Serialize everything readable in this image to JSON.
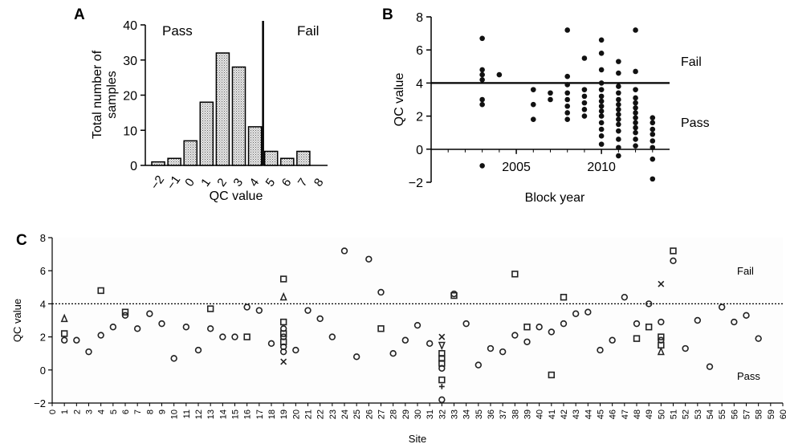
{
  "chart_data": [
    {
      "panel": "A",
      "type": "bar",
      "xlabel": "QC value",
      "ylabel": "Total number of samples",
      "ylim": [
        0,
        40
      ],
      "y_ticks": [
        "0",
        "10",
        "20",
        "30",
        "40"
      ],
      "categories": [
        "−2",
        "−1",
        "0",
        "1",
        "2",
        "3",
        "4",
        "5",
        "6",
        "7",
        "8"
      ],
      "values": [
        1,
        2,
        7,
        18,
        32,
        28,
        11,
        4,
        2,
        4,
        0
      ],
      "threshold": 4.5,
      "annotations": [
        "Pass",
        "Fail"
      ],
      "bar_fill": "stippled grey"
    },
    {
      "panel": "B",
      "type": "scatter",
      "xlabel": "Block year",
      "ylabel": "QC value",
      "xlim": [
        2000,
        2014
      ],
      "ylim": [
        -2,
        8
      ],
      "x_ticks": [
        "2005",
        "2010"
      ],
      "y_ticks": [
        "−2",
        "0",
        "2",
        "4",
        "6",
        "8"
      ],
      "threshold": 4,
      "annotations": [
        "Fail",
        "Pass"
      ],
      "points": [
        {
          "x": 2003,
          "y": 6.7
        },
        {
          "x": 2003,
          "y": 4.8
        },
        {
          "x": 2003,
          "y": 4.5
        },
        {
          "x": 2003,
          "y": 4.2
        },
        {
          "x": 2003,
          "y": 3.0
        },
        {
          "x": 2003,
          "y": 2.7
        },
        {
          "x": 2003,
          "y": -1.0
        },
        {
          "x": 2004,
          "y": 4.5
        },
        {
          "x": 2006,
          "y": 3.6
        },
        {
          "x": 2006,
          "y": 2.7
        },
        {
          "x": 2006,
          "y": 1.8
        },
        {
          "x": 2007,
          "y": 3.4
        },
        {
          "x": 2007,
          "y": 3.0
        },
        {
          "x": 2008,
          "y": 7.2
        },
        {
          "x": 2008,
          "y": 4.4
        },
        {
          "x": 2008,
          "y": 3.9
        },
        {
          "x": 2008,
          "y": 3.4
        },
        {
          "x": 2008,
          "y": 3.0
        },
        {
          "x": 2008,
          "y": 2.6
        },
        {
          "x": 2008,
          "y": 2.2
        },
        {
          "x": 2008,
          "y": 1.8
        },
        {
          "x": 2009,
          "y": 5.5
        },
        {
          "x": 2009,
          "y": 3.6
        },
        {
          "x": 2009,
          "y": 3.2
        },
        {
          "x": 2009,
          "y": 2.8
        },
        {
          "x": 2009,
          "y": 2.4
        },
        {
          "x": 2009,
          "y": 2.0
        },
        {
          "x": 2010,
          "y": 6.6
        },
        {
          "x": 2010,
          "y": 5.8
        },
        {
          "x": 2010,
          "y": 4.8
        },
        {
          "x": 2010,
          "y": 4.0
        },
        {
          "x": 2010,
          "y": 3.6
        },
        {
          "x": 2010,
          "y": 3.2
        },
        {
          "x": 2010,
          "y": 2.9
        },
        {
          "x": 2010,
          "y": 2.6
        },
        {
          "x": 2010,
          "y": 2.3
        },
        {
          "x": 2010,
          "y": 2.0
        },
        {
          "x": 2010,
          "y": 1.6
        },
        {
          "x": 2010,
          "y": 1.2
        },
        {
          "x": 2010,
          "y": 0.8
        },
        {
          "x": 2010,
          "y": 0.3
        },
        {
          "x": 2011,
          "y": 5.3
        },
        {
          "x": 2011,
          "y": 4.6
        },
        {
          "x": 2011,
          "y": 3.8
        },
        {
          "x": 2011,
          "y": 3.4
        },
        {
          "x": 2011,
          "y": 3.0
        },
        {
          "x": 2011,
          "y": 2.7
        },
        {
          "x": 2011,
          "y": 2.4
        },
        {
          "x": 2011,
          "y": 2.1
        },
        {
          "x": 2011,
          "y": 1.8
        },
        {
          "x": 2011,
          "y": 1.5
        },
        {
          "x": 2011,
          "y": 1.1
        },
        {
          "x": 2011,
          "y": 0.6
        },
        {
          "x": 2011,
          "y": 0.1
        },
        {
          "x": 2011,
          "y": -0.4
        },
        {
          "x": 2012,
          "y": 7.2
        },
        {
          "x": 2012,
          "y": 4.7
        },
        {
          "x": 2012,
          "y": 3.6
        },
        {
          "x": 2012,
          "y": 3.1
        },
        {
          "x": 2012,
          "y": 2.8
        },
        {
          "x": 2012,
          "y": 2.5
        },
        {
          "x": 2012,
          "y": 2.2
        },
        {
          "x": 2012,
          "y": 1.9
        },
        {
          "x": 2012,
          "y": 1.6
        },
        {
          "x": 2012,
          "y": 1.3
        },
        {
          "x": 2012,
          "y": 1.0
        },
        {
          "x": 2012,
          "y": 0.6
        },
        {
          "x": 2012,
          "y": 0.2
        },
        {
          "x": 2013,
          "y": 1.9
        },
        {
          "x": 2013,
          "y": 1.6
        },
        {
          "x": 2013,
          "y": 1.2
        },
        {
          "x": 2013,
          "y": 0.9
        },
        {
          "x": 2013,
          "y": 0.5
        },
        {
          "x": 2013,
          "y": 0.1
        },
        {
          "x": 2013,
          "y": -0.6
        },
        {
          "x": 2013,
          "y": -1.8
        }
      ]
    },
    {
      "panel": "C",
      "type": "scatter",
      "xlabel": "Site",
      "ylabel": "QC value",
      "xlim": [
        0,
        60
      ],
      "ylim": [
        -2,
        8
      ],
      "y_ticks": [
        "−2",
        "0",
        "2",
        "4",
        "6",
        "8"
      ],
      "threshold": 4,
      "annotations": [
        "Fail",
        "Pass"
      ],
      "points": [
        {
          "x": 1,
          "y": 3.1,
          "m": "triangle"
        },
        {
          "x": 1,
          "y": 2.2,
          "m": "square"
        },
        {
          "x": 1,
          "y": 1.8,
          "m": "circle"
        },
        {
          "x": 2,
          "y": 1.8,
          "m": "circle"
        },
        {
          "x": 3,
          "y": 1.1,
          "m": "circle"
        },
        {
          "x": 4,
          "y": 4.8,
          "m": "square"
        },
        {
          "x": 4,
          "y": 2.1,
          "m": "circle"
        },
        {
          "x": 5,
          "y": 2.6,
          "m": "circle"
        },
        {
          "x": 6,
          "y": 3.5,
          "m": "square"
        },
        {
          "x": 6,
          "y": 3.3,
          "m": "circle"
        },
        {
          "x": 7,
          "y": 2.5,
          "m": "circle"
        },
        {
          "x": 8,
          "y": 3.4,
          "m": "circle"
        },
        {
          "x": 9,
          "y": 2.8,
          "m": "circle"
        },
        {
          "x": 10,
          "y": 0.7,
          "m": "circle"
        },
        {
          "x": 11,
          "y": 2.6,
          "m": "circle"
        },
        {
          "x": 12,
          "y": 1.2,
          "m": "circle"
        },
        {
          "x": 13,
          "y": 3.7,
          "m": "square"
        },
        {
          "x": 13,
          "y": 2.5,
          "m": "circle"
        },
        {
          "x": 14,
          "y": 2.0,
          "m": "circle"
        },
        {
          "x": 15,
          "y": 2.0,
          "m": "circle"
        },
        {
          "x": 16,
          "y": 3.8,
          "m": "circle"
        },
        {
          "x": 16,
          "y": 2.0,
          "m": "square"
        },
        {
          "x": 17,
          "y": 3.6,
          "m": "circle"
        },
        {
          "x": 18,
          "y": 1.6,
          "m": "circle"
        },
        {
          "x": 19,
          "y": 5.5,
          "m": "square"
        },
        {
          "x": 19,
          "y": 4.4,
          "m": "triangle"
        },
        {
          "x": 19,
          "y": 2.9,
          "m": "square"
        },
        {
          "x": 19,
          "y": 2.5,
          "m": "circle"
        },
        {
          "x": 19,
          "y": 2.2,
          "m": "square"
        },
        {
          "x": 19,
          "y": 2.0,
          "m": "circle"
        },
        {
          "x": 19,
          "y": 1.7,
          "m": "square"
        },
        {
          "x": 19,
          "y": 1.4,
          "m": "circle"
        },
        {
          "x": 19,
          "y": 1.1,
          "m": "circle"
        },
        {
          "x": 19,
          "y": 0.5,
          "m": "cross"
        },
        {
          "x": 20,
          "y": 1.2,
          "m": "circle"
        },
        {
          "x": 21,
          "y": 3.6,
          "m": "circle"
        },
        {
          "x": 22,
          "y": 3.1,
          "m": "circle"
        },
        {
          "x": 23,
          "y": 2.0,
          "m": "circle"
        },
        {
          "x": 24,
          "y": 7.2,
          "m": "circle"
        },
        {
          "x": 25,
          "y": 0.8,
          "m": "circle"
        },
        {
          "x": 26,
          "y": 6.7,
          "m": "circle"
        },
        {
          "x": 27,
          "y": 4.7,
          "m": "circle"
        },
        {
          "x": 27,
          "y": 2.5,
          "m": "square"
        },
        {
          "x": 28,
          "y": 1.0,
          "m": "circle"
        },
        {
          "x": 29,
          "y": 1.8,
          "m": "circle"
        },
        {
          "x": 30,
          "y": 2.7,
          "m": "circle"
        },
        {
          "x": 31,
          "y": 1.6,
          "m": "circle"
        },
        {
          "x": 32,
          "y": 2.0,
          "m": "cross"
        },
        {
          "x": 32,
          "y": 1.5,
          "m": "invtriangle"
        },
        {
          "x": 32,
          "y": 1.0,
          "m": "square"
        },
        {
          "x": 32,
          "y": 0.7,
          "m": "square"
        },
        {
          "x": 32,
          "y": 0.4,
          "m": "square"
        },
        {
          "x": 32,
          "y": 0.1,
          "m": "circle"
        },
        {
          "x": 32,
          "y": -0.6,
          "m": "square"
        },
        {
          "x": 32,
          "y": -1.0,
          "m": "plus"
        },
        {
          "x": 32,
          "y": -1.8,
          "m": "circle"
        },
        {
          "x": 33,
          "y": 4.6,
          "m": "circle"
        },
        {
          "x": 33,
          "y": 4.5,
          "m": "square"
        },
        {
          "x": 34,
          "y": 2.8,
          "m": "circle"
        },
        {
          "x": 35,
          "y": 0.3,
          "m": "circle"
        },
        {
          "x": 36,
          "y": 1.3,
          "m": "circle"
        },
        {
          "x": 37,
          "y": 1.1,
          "m": "circle"
        },
        {
          "x": 38,
          "y": 5.8,
          "m": "square"
        },
        {
          "x": 38,
          "y": 2.1,
          "m": "circle"
        },
        {
          "x": 39,
          "y": 2.6,
          "m": "square"
        },
        {
          "x": 39,
          "y": 1.7,
          "m": "circle"
        },
        {
          "x": 40,
          "y": 2.6,
          "m": "circle"
        },
        {
          "x": 41,
          "y": 2.3,
          "m": "circle"
        },
        {
          "x": 41,
          "y": -0.3,
          "m": "square"
        },
        {
          "x": 42,
          "y": 4.4,
          "m": "square"
        },
        {
          "x": 42,
          "y": 2.8,
          "m": "circle"
        },
        {
          "x": 43,
          "y": 3.4,
          "m": "circle"
        },
        {
          "x": 44,
          "y": 3.5,
          "m": "circle"
        },
        {
          "x": 45,
          "y": 1.2,
          "m": "circle"
        },
        {
          "x": 46,
          "y": 1.8,
          "m": "circle"
        },
        {
          "x": 47,
          "y": 4.4,
          "m": "circle"
        },
        {
          "x": 48,
          "y": 2.8,
          "m": "circle"
        },
        {
          "x": 48,
          "y": 1.9,
          "m": "square"
        },
        {
          "x": 49,
          "y": 4.0,
          "m": "circle"
        },
        {
          "x": 49,
          "y": 2.6,
          "m": "square"
        },
        {
          "x": 50,
          "y": 5.2,
          "m": "cross"
        },
        {
          "x": 50,
          "y": 2.9,
          "m": "circle"
        },
        {
          "x": 50,
          "y": 2.0,
          "m": "square"
        },
        {
          "x": 50,
          "y": 1.8,
          "m": "circle"
        },
        {
          "x": 50,
          "y": 1.5,
          "m": "square"
        },
        {
          "x": 50,
          "y": 1.1,
          "m": "triangle"
        },
        {
          "x": 51,
          "y": 7.2,
          "m": "square"
        },
        {
          "x": 51,
          "y": 6.6,
          "m": "circle"
        },
        {
          "x": 52,
          "y": 1.3,
          "m": "circle"
        },
        {
          "x": 53,
          "y": 3.0,
          "m": "circle"
        },
        {
          "x": 54,
          "y": 0.2,
          "m": "circle"
        },
        {
          "x": 55,
          "y": 3.8,
          "m": "circle"
        },
        {
          "x": 56,
          "y": 2.9,
          "m": "circle"
        },
        {
          "x": 57,
          "y": 3.3,
          "m": "circle"
        },
        {
          "x": 58,
          "y": 1.9,
          "m": "circle"
        }
      ]
    }
  ]
}
